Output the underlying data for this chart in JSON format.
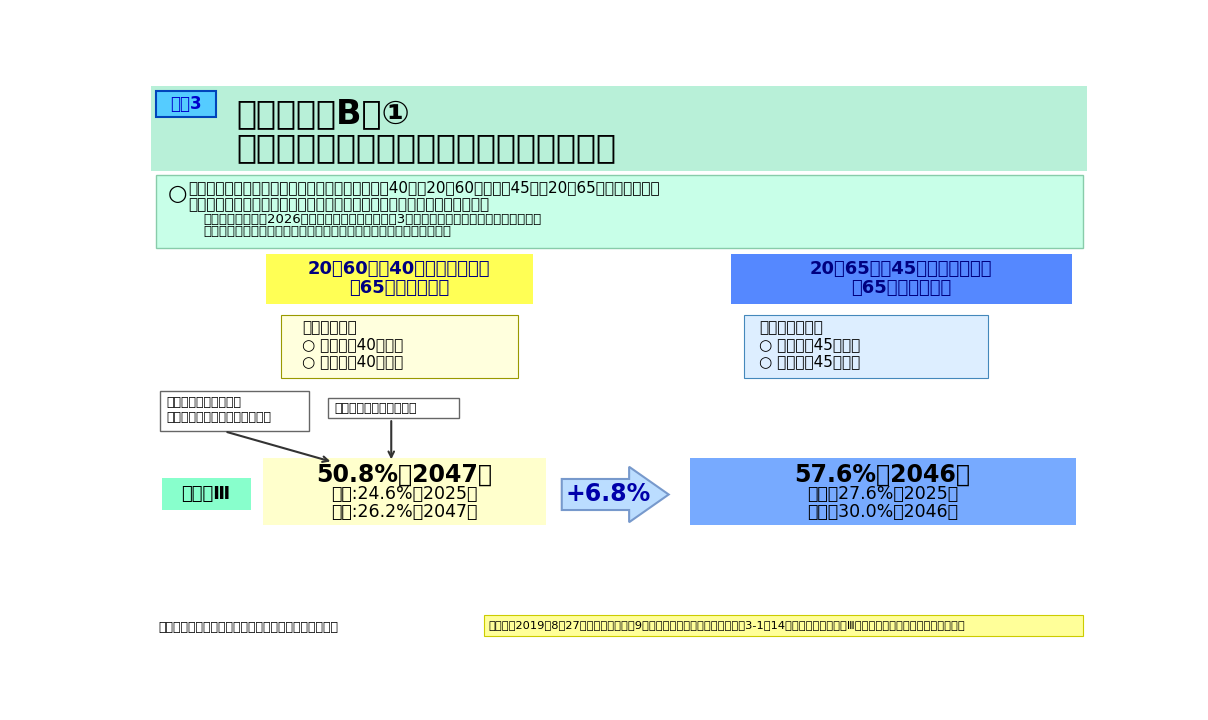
{
  "title_tag": "図表3",
  "title_line1": "オプションB－①",
  "title_line2": "基礎年金の保険料拠出期間を延長した場合",
  "bg_color": "#ffffff",
  "header_bg": "#b8f0d8",
  "tag_bg": "#55ccff",
  "tag_border": "#0044bb",
  "tag_text_color": "#0000cc",
  "bullet_section_bg": "#c8ffe8",
  "bullet_section_border": "#88ccaa",
  "sub_bullet1": "・試算の便宜上、2026年度より納付年数の上限を3年毎に１年延長した場合として試算。",
  "sub_bullet2": "・スライド調整率は、現行の仕組みの場合と同じものを用いている。",
  "left_box_bg": "#ffff55",
  "right_box_bg": "#5588ff",
  "left_desc_bg": "#ffffdd",
  "left_desc_border": "#999900",
  "right_desc_bg": "#ddeeff",
  "right_desc_border": "#4488bb",
  "label_box_border": "#666666",
  "case_label_bg": "#88ffcc",
  "left_result_bg": "#ffffcc",
  "arrow_poly_bg": "#bbddff",
  "arrow_poly_border": "#7799cc",
  "right_result_bg": "#77aaff",
  "footnote_src_bg": "#ffff99",
  "footnote_src_border": "#cccc00"
}
